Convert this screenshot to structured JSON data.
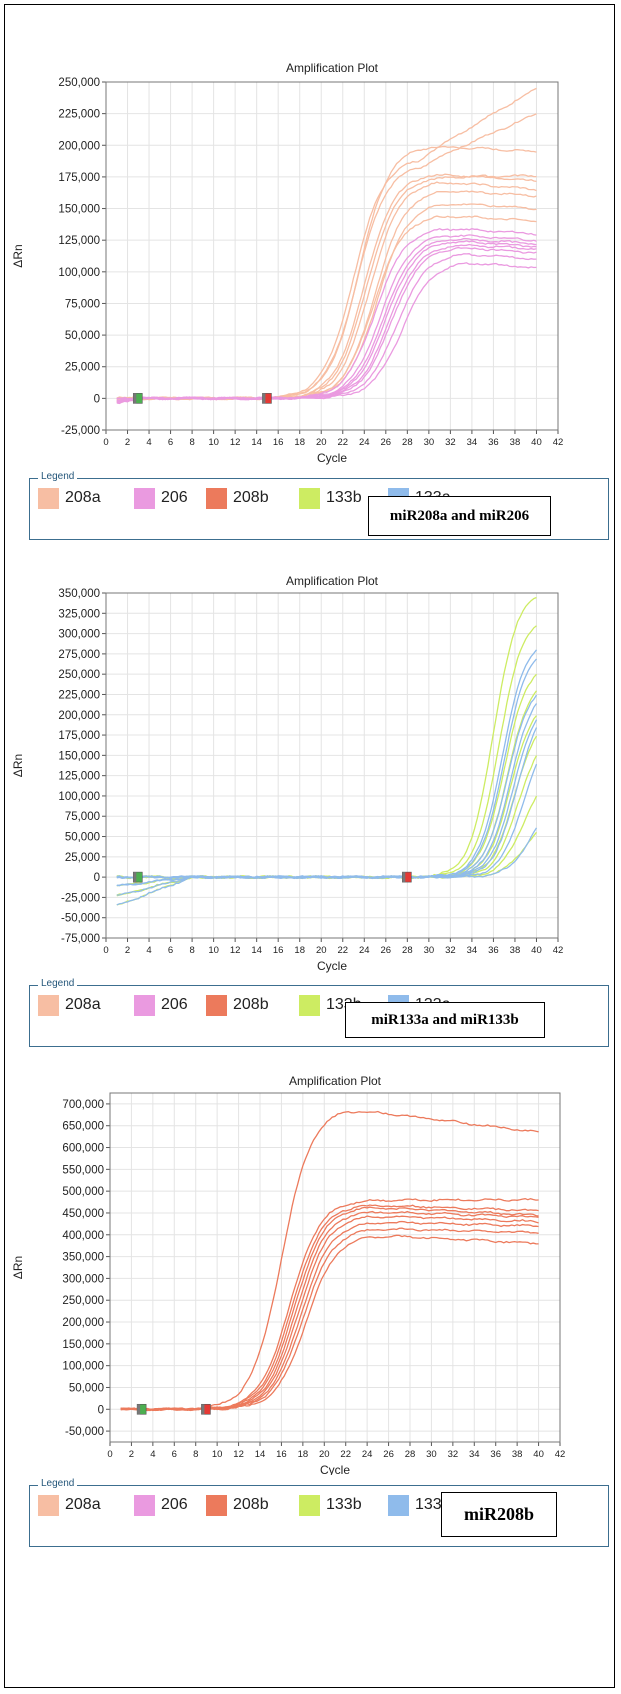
{
  "legend": {
    "title": "Legend",
    "items": [
      {
        "label": "208a",
        "color": "#f7bea3"
      },
      {
        "label": "206",
        "color": "#ea9ae0"
      },
      {
        "label": "208b",
        "color": "#ec7a5c"
      },
      {
        "label": "133b",
        "color": "#cdec62"
      },
      {
        "label": "133a",
        "color": "#8fbbeb"
      }
    ]
  },
  "chart_data": [
    {
      "type": "line",
      "title": "Amplification Plot",
      "xlabel": "Cycle",
      "ylabel": "ΔRn",
      "xlim": [
        0,
        42
      ],
      "ylim": [
        -25000,
        250000
      ],
      "x_ticks": [
        0,
        2,
        4,
        6,
        8,
        10,
        12,
        14,
        16,
        18,
        20,
        22,
        24,
        26,
        28,
        30,
        32,
        34,
        36,
        38,
        40,
        42
      ],
      "y_ticks": [
        -25000,
        0,
        25000,
        50000,
        75000,
        100000,
        125000,
        150000,
        175000,
        200000,
        225000,
        250000
      ],
      "y_tick_labels": [
        "-25,000",
        "0",
        "25,000",
        "50,000",
        "75,000",
        "100,000",
        "125,000",
        "150,000",
        "175,000",
        "200,000",
        "225,000",
        "250,000"
      ],
      "grid": true,
      "caption": "miR208a and miR206",
      "series": [
        {
          "group": "208a",
          "curves": [
            {
              "ct": 23.0,
              "plateau": 190000,
              "end": 245000
            },
            {
              "ct": 23.5,
              "plateau": 200000,
              "end": 195000
            },
            {
              "ct": 23.3,
              "plateau": 185000,
              "end": 225000
            },
            {
              "ct": 24.0,
              "plateau": 178000,
              "end": 172000
            },
            {
              "ct": 24.2,
              "plateau": 175000,
              "end": 176000
            },
            {
              "ct": 24.5,
              "plateau": 172000,
              "end": 165000
            },
            {
              "ct": 25.0,
              "plateau": 165000,
              "end": 160000
            },
            {
              "ct": 25.2,
              "plateau": 155000,
              "end": 150000
            },
            {
              "ct": 24.8,
              "plateau": 145000,
              "end": 140000
            }
          ]
        },
        {
          "group": "206",
          "curves": [
            {
              "ct": 25.0,
              "plateau": 135000,
              "end": 130000
            },
            {
              "ct": 25.5,
              "plateau": 130000,
              "end": 125000
            },
            {
              "ct": 25.8,
              "plateau": 127000,
              "end": 122000
            },
            {
              "ct": 26.0,
              "plateau": 125000,
              "end": 120000
            },
            {
              "ct": 26.3,
              "plateau": 122000,
              "end": 118000
            },
            {
              "ct": 26.5,
              "plateau": 120000,
              "end": 115000
            },
            {
              "ct": 27.0,
              "plateau": 115000,
              "end": 110000
            },
            {
              "ct": 27.5,
              "plateau": 108000,
              "end": 103000
            }
          ]
        }
      ],
      "thresholds": [
        {
          "x": 3,
          "color": "#4caf50"
        },
        {
          "x": 15,
          "color": "#e53935"
        }
      ]
    },
    {
      "type": "line",
      "title": "Amplification Plot",
      "xlabel": "Cycle",
      "ylabel": "ΔRn",
      "xlim": [
        0,
        42
      ],
      "ylim": [
        -75000,
        350000
      ],
      "x_ticks": [
        0,
        2,
        4,
        6,
        8,
        10,
        12,
        14,
        16,
        18,
        20,
        22,
        24,
        26,
        28,
        30,
        32,
        34,
        36,
        38,
        40,
        42
      ],
      "y_ticks": [
        -75000,
        -50000,
        -25000,
        0,
        25000,
        50000,
        75000,
        100000,
        125000,
        150000,
        175000,
        200000,
        225000,
        250000,
        275000,
        300000,
        325000,
        350000
      ],
      "y_tick_labels": [
        "-75,000",
        "-50,000",
        "-25,000",
        "0",
        "25,000",
        "50,000",
        "75,000",
        "100,000",
        "125,000",
        "150,000",
        "175,000",
        "200,000",
        "225,000",
        "250,000",
        "275,000",
        "300,000",
        "325,000",
        "350,000"
      ],
      "grid": true,
      "caption": "miR133a and miR133b",
      "series": [
        {
          "group": "133b",
          "curves": [
            {
              "ct": 36.0,
              "end": 345000
            },
            {
              "ct": 36.5,
              "end": 310000
            },
            {
              "ct": 37.0,
              "end": 250000
            },
            {
              "ct": 37.3,
              "end": 230000
            },
            {
              "ct": 37.6,
              "end": 200000
            },
            {
              "ct": 38.0,
              "end": 175000
            },
            {
              "ct": 38.3,
              "end": 150000
            },
            {
              "ct": 38.8,
              "end": 100000
            },
            {
              "ct": 39.0,
              "end": 55000
            }
          ]
        },
        {
          "group": "133a",
          "curves": [
            {
              "ct": 36.8,
              "end": 280000
            },
            {
              "ct": 37.0,
              "end": 270000
            },
            {
              "ct": 37.3,
              "end": 225000
            },
            {
              "ct": 37.6,
              "end": 215000
            },
            {
              "ct": 37.9,
              "end": 195000
            },
            {
              "ct": 38.2,
              "end": 185000
            },
            {
              "ct": 38.8,
              "end": 140000
            },
            {
              "ct": 39.5,
              "end": 60000
            }
          ]
        }
      ],
      "thresholds": [
        {
          "x": 3,
          "color": "#4caf50"
        },
        {
          "x": 28,
          "color": "#e53935"
        }
      ]
    },
    {
      "type": "line",
      "title": "Amplification Plot",
      "xlabel": "Cycle",
      "ylabel": "ΔRn",
      "xlim": [
        0,
        42
      ],
      "ylim": [
        -75000,
        725000
      ],
      "x_ticks": [
        0,
        2,
        4,
        6,
        8,
        10,
        12,
        14,
        16,
        18,
        20,
        22,
        24,
        26,
        28,
        30,
        32,
        34,
        36,
        38,
        40,
        42
      ],
      "y_ticks": [
        -50000,
        0,
        50000,
        100000,
        150000,
        200000,
        250000,
        300000,
        350000,
        400000,
        450000,
        500000,
        550000,
        600000,
        650000,
        700000
      ],
      "y_tick_labels": [
        "-50,000",
        "0",
        "50,000",
        "100,000",
        "150,000",
        "200,000",
        "250,000",
        "300,000",
        "350,000",
        "400,000",
        "450,000",
        "500,000",
        "550,000",
        "600,000",
        "650,000",
        "700,000"
      ],
      "grid": true,
      "caption": "miR208b",
      "series": [
        {
          "group": "208b",
          "curves": [
            {
              "ct": 16.0,
              "plateau": 690000,
              "end": 635000
            },
            {
              "ct": 16.8,
              "plateau": 480000,
              "end": 480000
            },
            {
              "ct": 17.0,
              "plateau": 470000,
              "end": 455000
            },
            {
              "ct": 17.2,
              "plateau": 465000,
              "end": 445000
            },
            {
              "ct": 17.4,
              "plateau": 455000,
              "end": 440000
            },
            {
              "ct": 17.6,
              "plateau": 445000,
              "end": 430000
            },
            {
              "ct": 17.8,
              "plateau": 430000,
              "end": 420000
            },
            {
              "ct": 18.0,
              "plateau": 415000,
              "end": 405000
            },
            {
              "ct": 18.3,
              "plateau": 400000,
              "end": 380000
            }
          ]
        }
      ],
      "thresholds": [
        {
          "x": 3,
          "color": "#4caf50"
        },
        {
          "x": 9,
          "color": "#e53935"
        }
      ]
    }
  ]
}
